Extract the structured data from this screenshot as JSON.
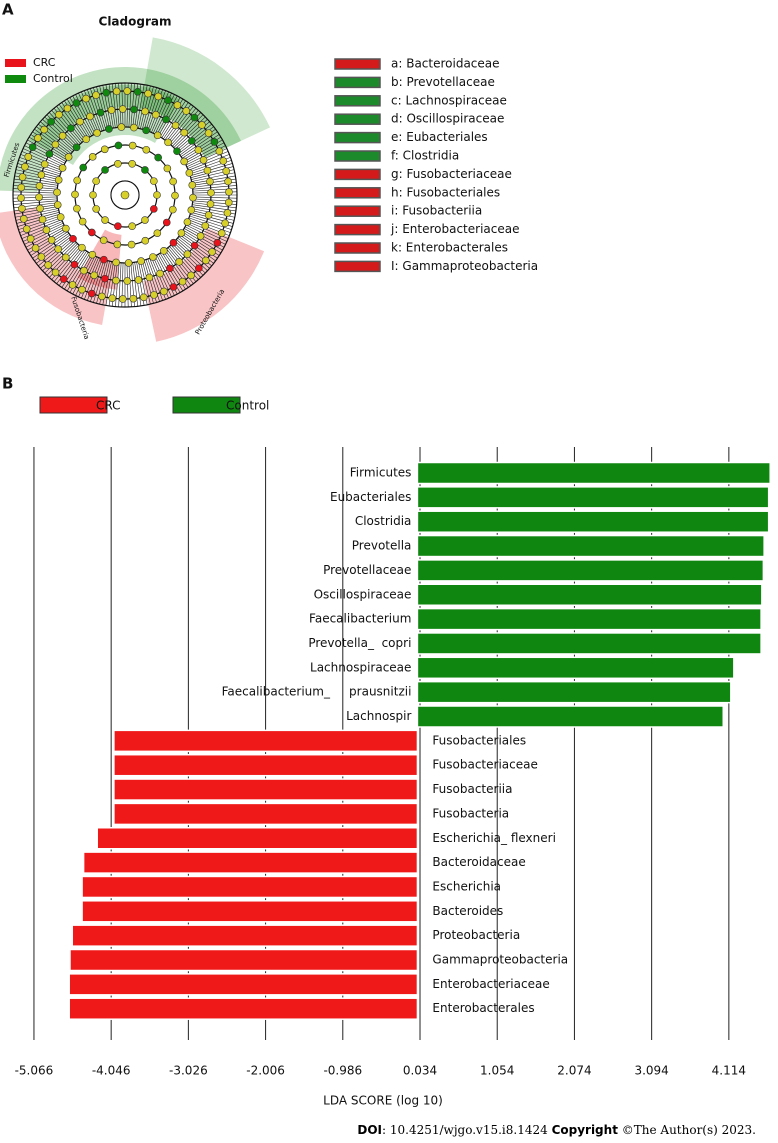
{
  "panel_labels": [
    "A",
    "B"
  ],
  "cladogram": {
    "title": "Cladogram",
    "legend": [
      {
        "name": "CRC",
        "color": "#e8131b"
      },
      {
        "name": "Control",
        "color": "#0f8a0f"
      }
    ],
    "clade_labels": [
      "Firmicutes",
      "Fusobacteria",
      "Proteobacteria"
    ],
    "key": [
      {
        "label": "a: Bacteroidaceae",
        "color": "#d41a1a"
      },
      {
        "label": "b: Prevotellaceae",
        "color": "#1c8a2a"
      },
      {
        "label": "c: Lachnospiraceae",
        "color": "#1c8a2a"
      },
      {
        "label": "d: Oscillospiraceae",
        "color": "#1c8a2a"
      },
      {
        "label": "e: Eubacteriales",
        "color": "#1c8a2a"
      },
      {
        "label": "f: Clostridia",
        "color": "#1c8a2a"
      },
      {
        "label": "g: Fusobacteriaceae",
        "color": "#d41a1a"
      },
      {
        "label": "h: Fusobacteriales",
        "color": "#d41a1a"
      },
      {
        "label": "i: Fusobacteriia",
        "color": "#d41a1a"
      },
      {
        "label": "j: Enterobacteriaceae",
        "color": "#d41a1a"
      },
      {
        "label": "k: Enterobacterales",
        "color": "#d41a1a"
      },
      {
        "label": "I: Gammaproteobacteria",
        "color": "#d41a1a"
      }
    ]
  },
  "chart_data": {
    "type": "bar",
    "orientation": "horizontal",
    "xlabel": "LDA SCORE (log 10)",
    "categories": [
      "Firmicutes",
      "Eubacteriales",
      "Clostridia",
      "Prevotella",
      "Prevotellaceae",
      "Oscillospiraceae",
      "Faecalibacterium",
      "Prevotella_  copri",
      "Lachnospiraceae",
      "Faecalibacterium_     prausnitzii",
      "Lachnospir",
      "Fusobacteriales",
      "Fusobacteriaceae",
      "Fusobacteriia",
      "Fusobacteria",
      "Escherichia_ flexneri",
      "Bacteroidaceae",
      "Escherichia",
      "Bacteroides",
      "Proteobacteria",
      "Gammaproteobacteria",
      "Enterobacteriaceae",
      "Enterobacterales"
    ],
    "series": [
      {
        "name": "CRC",
        "color": "#f01919",
        "values": [
          null,
          null,
          null,
          null,
          null,
          null,
          null,
          null,
          null,
          null,
          null,
          -4.01,
          -4.01,
          -4.01,
          -4.01,
          -4.23,
          -4.41,
          -4.43,
          -4.43,
          -4.56,
          -4.59,
          -4.6,
          -4.6
        ]
      },
      {
        "name": "Control",
        "color": "#0f860f",
        "values": [
          4.66,
          4.64,
          4.64,
          4.58,
          4.57,
          4.55,
          4.54,
          4.54,
          4.18,
          4.14,
          4.04,
          null,
          null,
          null,
          null,
          null,
          null,
          null,
          null,
          null,
          null,
          null,
          null
        ]
      }
    ],
    "xlim": [
      -5.5,
      4.75
    ],
    "xticks": [
      -5.066,
      -4.046,
      -3.026,
      -2.006,
      -0.986,
      0.034,
      1.054,
      2.074,
      3.094,
      4.114
    ],
    "grid": true
  },
  "footer": [
    "DOI",
    ": 10.4251/wjgo.v15.i8.1424 ",
    "Copyright",
    " ©The Author(s) 2023."
  ]
}
